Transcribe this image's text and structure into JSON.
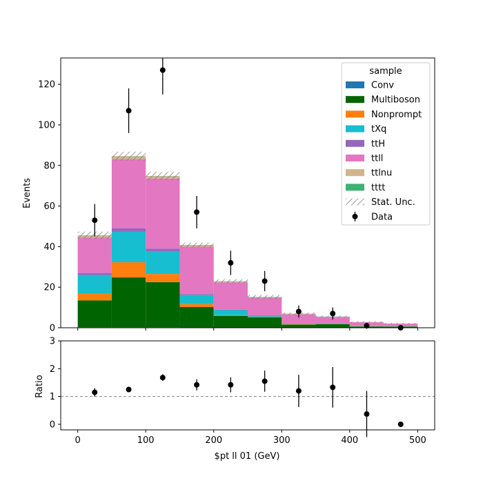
{
  "chart_data": [
    {
      "type": "bar",
      "stacked": true,
      "ylabel": "Events",
      "ylim": [
        0,
        133
      ],
      "xlim": [
        -25,
        525
      ],
      "yticks": [
        0,
        20,
        40,
        60,
        80,
        100,
        120
      ],
      "bin_edges": [
        0,
        50,
        100,
        150,
        200,
        250,
        300,
        350,
        400,
        450,
        500
      ],
      "series": [
        {
          "name": "Conv",
          "color": "#1f77b4",
          "values": [
            0.3,
            0.3,
            0.3,
            0.2,
            0.1,
            0.1,
            0.0,
            0.0,
            0.0,
            0.0
          ]
        },
        {
          "name": "Multiboson",
          "color": "#006400",
          "values": [
            13.2,
            24.5,
            22.2,
            10.0,
            5.8,
            5.0,
            1.5,
            1.8,
            0.6,
            0.5
          ]
        },
        {
          "name": "Nonprompt",
          "color": "#ff7f0e",
          "values": [
            3.5,
            7.5,
            4.0,
            1.5,
            0.3,
            0.3,
            0.2,
            0.1,
            0.1,
            0.1
          ]
        },
        {
          "name": "tXq",
          "color": "#17becf",
          "values": [
            9.0,
            15.0,
            11.0,
            4.5,
            2.5,
            0.8,
            0.3,
            0.3,
            0.2,
            0.2
          ]
        },
        {
          "name": "ttH",
          "color": "#9467bd",
          "values": [
            1.0,
            1.7,
            1.5,
            0.3,
            0.2,
            0.1,
            0.1,
            0.1,
            0.0,
            0.0
          ]
        },
        {
          "name": "ttll",
          "color": "#e377c2",
          "values": [
            17.5,
            34.0,
            34.5,
            23.5,
            13.5,
            8.5,
            4.5,
            3.0,
            1.8,
            1.2
          ]
        },
        {
          "name": "ttlnu",
          "color": "#d2b48c",
          "values": [
            1.0,
            1.5,
            1.2,
            0.7,
            0.4,
            0.3,
            0.2,
            0.1,
            0.1,
            0.1
          ]
        },
        {
          "name": "tttt",
          "color": "#3cb371",
          "values": [
            0.1,
            0.1,
            0.1,
            0.1,
            0.1,
            0.1,
            0.1,
            0.1,
            0.0,
            0.0
          ]
        }
      ],
      "stat_unc": [
        1.8,
        2.2,
        2.0,
        1.2,
        1.0,
        1.0,
        0.6,
        0.5,
        0.4,
        0.3
      ],
      "data": {
        "name": "Data",
        "x": [
          25,
          75,
          125,
          175,
          225,
          275,
          325,
          375,
          425,
          475
        ],
        "y": [
          53,
          107,
          127,
          57,
          32,
          23,
          8,
          7,
          1,
          0
        ],
        "yerr": [
          8,
          11,
          12,
          8,
          6,
          5,
          3,
          3,
          1.5,
          0
        ]
      },
      "legend": {
        "title": "sample",
        "placement": "top-right",
        "stat_label": "Stat. Unc."
      }
    },
    {
      "type": "scatter",
      "xlabel": "$pt ll 01 (GeV)",
      "ylabel": "Ratio",
      "xlim": [
        -25,
        525
      ],
      "ylim": [
        -0.2,
        3
      ],
      "xticks": [
        0,
        100,
        200,
        300,
        400,
        500
      ],
      "yticks": [
        0,
        1,
        2,
        3
      ],
      "reference_line": 1,
      "x": [
        25,
        75,
        125,
        175,
        225,
        275,
        325,
        375,
        425,
        475
      ],
      "y": [
        1.15,
        1.25,
        1.68,
        1.42,
        1.42,
        1.55,
        1.2,
        1.33,
        0.37,
        0.0
      ],
      "yerr": [
        0.15,
        0.08,
        0.12,
        0.2,
        0.27,
        0.38,
        0.58,
        0.73,
        0.83,
        0.0
      ]
    }
  ]
}
